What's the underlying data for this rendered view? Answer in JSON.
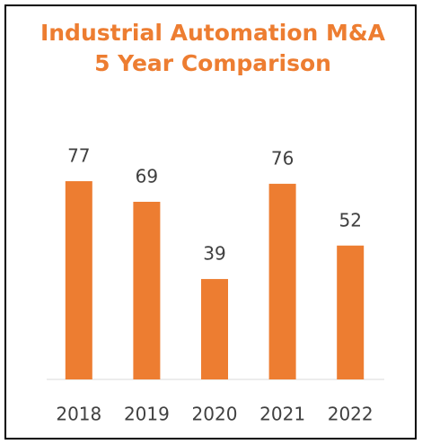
{
  "chart_data": {
    "type": "bar",
    "title": [
      "Industrial Automation M&A",
      "5 Year Comparison"
    ],
    "categories": [
      "2018",
      "2019",
      "2020",
      "2021",
      "2022"
    ],
    "values": [
      77,
      69,
      39,
      76,
      52
    ],
    "color": "#ed7d31"
  }
}
